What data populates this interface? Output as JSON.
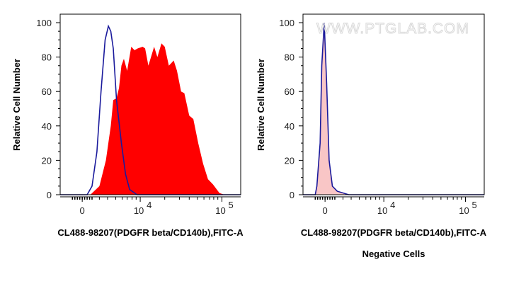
{
  "chart_data": [
    {
      "type": "area",
      "x_scale": "biexponential (positions in log10 decades)",
      "xlim": [
        3.02,
        5.23
      ],
      "ylim": [
        0,
        100
      ],
      "ylabel": "Relative Cell Number",
      "xlabel": "CL488-98207(PDGFR beta/CD140b),FITC-A",
      "yticks": [
        "0",
        "20",
        "40",
        "60",
        "80",
        "100"
      ],
      "xticks": [
        {
          "label": "0",
          "pos": 3.29
        },
        {
          "label": "10",
          "exp": "4",
          "pos": 4
        },
        {
          "label": "10",
          "exp": "5",
          "pos": 5
        }
      ],
      "series": [
        {
          "fill": "#ff0000",
          "stroke": "none",
          "x": [
            3.39,
            3.5,
            3.58,
            3.64,
            3.67,
            3.71,
            3.74,
            3.77,
            3.8,
            3.84,
            3.89,
            3.93,
            3.97,
            4.03,
            4.06,
            4.1,
            4.17,
            4.21,
            4.26,
            4.3,
            4.35,
            4.41,
            4.45,
            4.5,
            4.54,
            4.6,
            4.65,
            4.71,
            4.77,
            4.83,
            4.89,
            4.97,
            5.03
          ],
          "y": [
            0,
            5,
            20,
            40,
            55,
            56,
            62,
            75,
            79,
            72,
            86,
            84,
            85,
            86,
            85,
            75,
            86,
            80,
            88,
            86,
            75,
            78,
            72,
            60,
            59,
            46,
            44,
            30,
            18,
            9,
            6,
            1,
            0
          ]
        },
        {
          "fill": "none",
          "stroke": "#1a1a9c",
          "x": [
            3.02,
            3.35,
            3.41,
            3.47,
            3.52,
            3.57,
            3.61,
            3.64,
            3.67,
            3.71,
            3.77,
            3.82,
            3.87,
            3.96,
            5.23
          ],
          "y": [
            0,
            0,
            5,
            25,
            60,
            90,
            98,
            95,
            85,
            55,
            30,
            12,
            3,
            0,
            0
          ]
        }
      ]
    },
    {
      "type": "area",
      "x_scale": "biexponential (positions in log10 decades)",
      "xlim": [
        3.01,
        5.23
      ],
      "ylim": [
        0,
        100
      ],
      "ylabel": "Relative Cell Number",
      "xlabel": "CL488-98207(PDGFR beta/CD140b),FITC-A",
      "subtitle": "Negative Cells",
      "watermark": "WWW.PTGLAB.COM",
      "yticks": [
        "0",
        "20",
        "40",
        "60",
        "80",
        "100"
      ],
      "xticks": [
        {
          "label": "0",
          "pos": 3.28
        },
        {
          "label": "10",
          "exp": "4",
          "pos": 4
        },
        {
          "label": "10",
          "exp": "5",
          "pos": 5
        }
      ],
      "series": [
        {
          "fill": "#f9c6c6",
          "stroke": "#1a1a9c",
          "x": [
            3.01,
            3.16,
            3.18,
            3.22,
            3.24,
            3.27,
            3.3,
            3.33,
            3.37,
            3.43,
            3.57,
            5.23
          ],
          "y": [
            0,
            0,
            5,
            30,
            75,
            100,
            65,
            20,
            5,
            2,
            0,
            0
          ]
        }
      ]
    }
  ]
}
